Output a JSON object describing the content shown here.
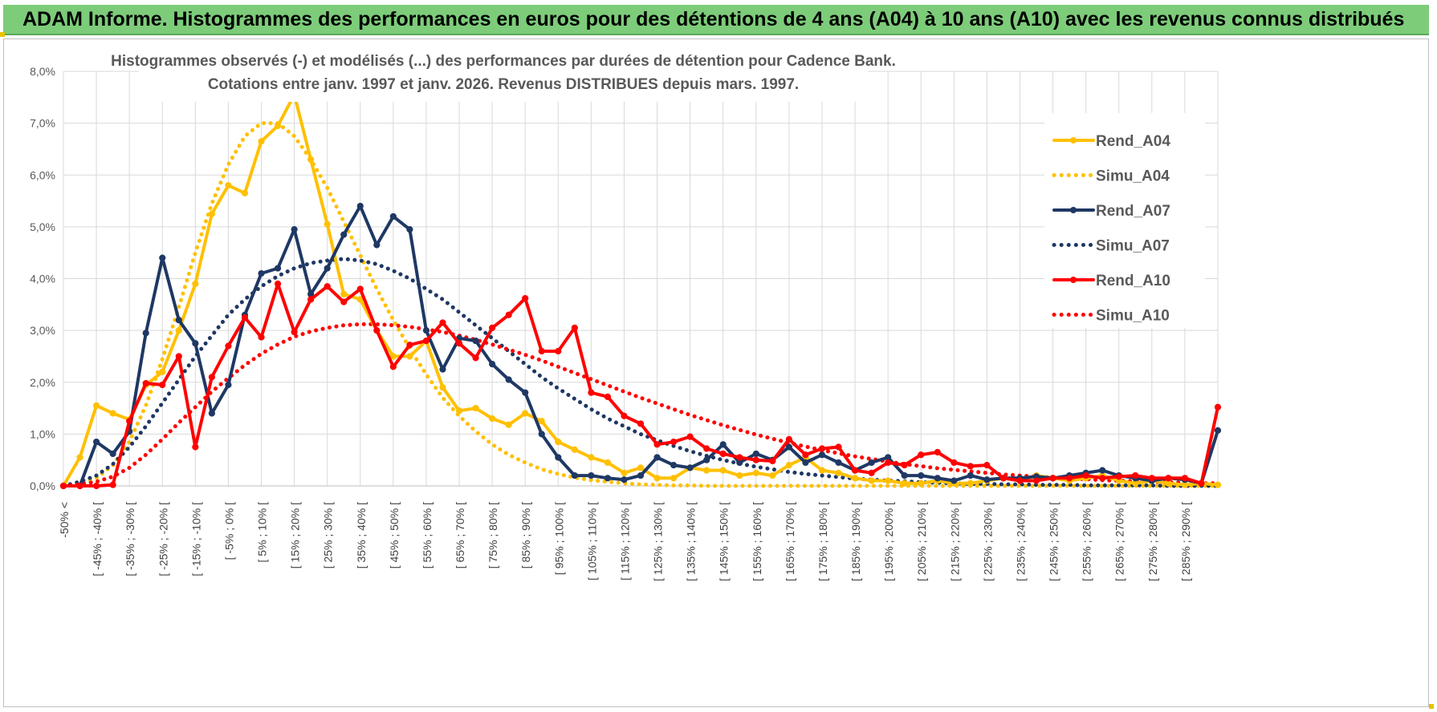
{
  "banner": {
    "title": "ADAM Informe. Histogrammes des performances en euros pour des détentions de 4 ans (A04) à 10 ans (A10) avec les revenus connus distribués"
  },
  "chart_data": {
    "type": "line",
    "title": "Histogrammes observés (-) et modélisés (...) des performances par durées de détention pour Cadence Bank.",
    "subtitle": "Cotations entre janv. 1997 et janv. 2026. Revenus DISTRIBUES depuis mars. 1997.",
    "xlabel": "",
    "ylabel": "",
    "ylim": [
      0,
      8
    ],
    "yticks": [
      "0,0%",
      "1,0%",
      "2,0%",
      "3,0%",
      "4,0%",
      "5,0%",
      "6,0%",
      "7,0%",
      "8,0%"
    ],
    "grid": true,
    "legend_position": "right",
    "x_labels": [
      "-50% <",
      "[ -45% ; -40% [",
      "[ -35% ; -30% [",
      "[ -25% ; -20% [",
      "[ -15% ; -10% [",
      "[ -5% ; 0% [",
      "[ 5% ; 10% [",
      "[ 15% ; 20% [",
      "[ 25% ; 30% [",
      "[ 35% ; 40% [",
      "[ 45% ; 50% [",
      "[ 55% ; 60% [",
      "[ 65% ; 70% [",
      "[ 75% ; 80% [",
      "[ 85% ; 90% [",
      "[ 95% ; 100% [",
      "[ 105% ; 110% [",
      "[ 115% ; 120% [",
      "[ 125% ; 130% [",
      "[ 135% ; 140% [",
      "[ 145% ; 150% [",
      "[ 155% ; 160% [",
      "[ 165% ; 170% [",
      "[ 175% ; 180% [",
      "[ 185% ; 190% [",
      "[ 195% ; 200% [",
      "[ 205% ; 210% [",
      "[ 215% ; 220% [",
      "[ 225% ; 230% [",
      "[ 235% ; 240% [",
      "[ 245% ; 250% [",
      "[ 255% ; 260% [",
      "[ 265% ; 270% [",
      "[ 275% ; 280% [",
      "[ 285% ; 290% ["
    ],
    "series": [
      {
        "name": "Rend_A04",
        "color": "#ffc000",
        "style": "solid",
        "markers": true,
        "values": [
          0.0,
          0.55,
          1.55,
          1.4,
          1.28,
          1.95,
          2.2,
          3.0,
          3.9,
          5.25,
          5.8,
          5.65,
          6.65,
          6.95,
          7.55,
          6.3,
          5.05,
          3.7,
          3.6,
          3.0,
          2.5,
          2.5,
          2.8,
          1.9,
          1.45,
          1.5,
          1.3,
          1.18,
          1.4,
          1.25,
          0.85,
          0.7,
          0.55,
          0.45,
          0.25,
          0.35,
          0.15,
          0.15,
          0.35,
          0.3,
          0.3,
          0.2,
          0.25,
          0.2,
          0.4,
          0.55,
          0.3,
          0.25,
          0.15,
          0.1,
          0.1,
          0.05,
          0.05,
          0.1,
          0.05,
          0.05,
          0.1,
          0.15,
          0.1,
          0.2,
          0.15,
          0.1,
          0.15,
          0.2,
          0.1,
          0.05,
          0.1,
          0.05,
          0.02,
          0.05,
          0.02
        ]
      },
      {
        "name": "Simu_A04",
        "color": "#ffc000",
        "style": "dotted",
        "markers": false,
        "values": [
          0.0,
          0.04,
          0.15,
          0.4,
          0.85,
          1.55,
          2.45,
          3.45,
          4.5,
          5.45,
          6.2,
          6.75,
          7.0,
          7.0,
          6.75,
          6.3,
          5.75,
          5.1,
          4.45,
          3.8,
          3.2,
          2.65,
          2.15,
          1.7,
          1.35,
          1.05,
          0.8,
          0.6,
          0.45,
          0.32,
          0.23,
          0.16,
          0.11,
          0.08,
          0.05,
          0.03,
          0.02,
          0.01,
          0.01,
          0.0,
          0.0,
          0.0,
          0.0,
          0.0,
          0.0,
          0.0,
          0.0,
          0.0,
          0.0,
          0.0,
          0.0,
          0.0,
          0.0,
          0.0,
          0.0,
          0.0,
          0.0,
          0.0,
          0.0,
          0.0,
          0.0,
          0.0,
          0.0,
          0.0,
          0.0,
          0.0,
          0.0,
          0.0,
          0.0,
          0.0,
          0.0
        ]
      },
      {
        "name": "Rend_A07",
        "color": "#1f3864",
        "style": "solid",
        "markers": true,
        "values": [
          0.0,
          0.0,
          0.85,
          0.62,
          1.05,
          2.95,
          4.4,
          3.2,
          2.75,
          1.4,
          1.95,
          3.3,
          4.1,
          4.2,
          4.95,
          3.7,
          4.2,
          4.85,
          5.4,
          4.65,
          5.2,
          4.95,
          3.0,
          2.25,
          2.85,
          2.8,
          2.35,
          2.05,
          1.8,
          1.0,
          0.55,
          0.2,
          0.2,
          0.15,
          0.12,
          0.2,
          0.55,
          0.4,
          0.35,
          0.5,
          0.8,
          0.45,
          0.62,
          0.5,
          0.75,
          0.45,
          0.6,
          0.45,
          0.3,
          0.45,
          0.55,
          0.2,
          0.2,
          0.15,
          0.1,
          0.2,
          0.12,
          0.15,
          0.15,
          0.18,
          0.15,
          0.2,
          0.25,
          0.3,
          0.2,
          0.15,
          0.1,
          0.15,
          0.12,
          0.05,
          1.07
        ]
      },
      {
        "name": "Simu_A07",
        "color": "#1f3864",
        "style": "dotted",
        "markers": false,
        "values": [
          0.0,
          0.08,
          0.2,
          0.42,
          0.75,
          1.15,
          1.6,
          2.05,
          2.5,
          2.9,
          3.3,
          3.6,
          3.85,
          4.05,
          4.2,
          4.3,
          4.35,
          4.38,
          4.35,
          4.28,
          4.15,
          4.0,
          3.8,
          3.6,
          3.35,
          3.1,
          2.85,
          2.6,
          2.35,
          2.1,
          1.88,
          1.68,
          1.48,
          1.3,
          1.15,
          1.0,
          0.88,
          0.77,
          0.67,
          0.58,
          0.5,
          0.43,
          0.37,
          0.32,
          0.27,
          0.23,
          0.2,
          0.17,
          0.14,
          0.12,
          0.1,
          0.09,
          0.07,
          0.06,
          0.05,
          0.04,
          0.04,
          0.03,
          0.03,
          0.02,
          0.02,
          0.02,
          0.01,
          0.01,
          0.01,
          0.01,
          0.01,
          0.0,
          0.0,
          0.0,
          0.0
        ]
      },
      {
        "name": "Rend_A10",
        "color": "#ff0000",
        "style": "solid",
        "markers": true,
        "values": [
          0.0,
          0.0,
          0.0,
          0.02,
          1.25,
          1.98,
          1.95,
          2.5,
          0.75,
          2.1,
          2.7,
          3.25,
          2.87,
          3.9,
          2.97,
          3.6,
          3.85,
          3.55,
          3.8,
          3.0,
          2.3,
          2.72,
          2.8,
          3.15,
          2.75,
          2.47,
          3.05,
          3.3,
          3.62,
          2.6,
          2.6,
          3.05,
          1.8,
          1.72,
          1.35,
          1.2,
          0.8,
          0.85,
          0.95,
          0.72,
          0.62,
          0.55,
          0.5,
          0.48,
          0.9,
          0.6,
          0.72,
          0.75,
          0.3,
          0.25,
          0.45,
          0.4,
          0.6,
          0.65,
          0.45,
          0.38,
          0.4,
          0.15,
          0.1,
          0.1,
          0.15,
          0.15,
          0.2,
          0.15,
          0.18,
          0.2,
          0.15,
          0.15,
          0.15,
          0.05,
          1.52
        ]
      },
      {
        "name": "Simu_A10",
        "color": "#ff0000",
        "style": "dotted",
        "markers": false,
        "values": [
          0.0,
          0.03,
          0.08,
          0.18,
          0.35,
          0.6,
          0.9,
          1.22,
          1.52,
          1.82,
          2.08,
          2.33,
          2.55,
          2.73,
          2.88,
          2.98,
          3.05,
          3.1,
          3.12,
          3.12,
          3.1,
          3.07,
          3.02,
          2.97,
          2.9,
          2.82,
          2.73,
          2.63,
          2.53,
          2.42,
          2.3,
          2.18,
          2.06,
          1.94,
          1.82,
          1.7,
          1.59,
          1.48,
          1.37,
          1.27,
          1.17,
          1.08,
          0.99,
          0.91,
          0.83,
          0.76,
          0.69,
          0.63,
          0.57,
          0.52,
          0.47,
          0.42,
          0.38,
          0.34,
          0.31,
          0.28,
          0.25,
          0.22,
          0.2,
          0.18,
          0.16,
          0.14,
          0.13,
          0.11,
          0.1,
          0.09,
          0.08,
          0.07,
          0.06,
          0.05,
          0.05
        ]
      }
    ]
  }
}
